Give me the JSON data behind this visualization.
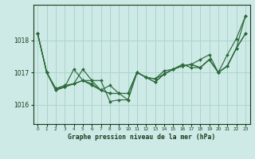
{
  "title": "Graphe pression niveau de la mer (hPa)",
  "background_color": "#ceeae6",
  "grid_color": "#aad4cc",
  "line_color": "#2d6b3c",
  "text_color": "#1a3a1a",
  "xlim": [
    -0.5,
    23.5
  ],
  "ylim": [
    1015.4,
    1019.1
  ],
  "yticks": [
    1016,
    1017,
    1018
  ],
  "xticks": [
    0,
    1,
    2,
    3,
    4,
    5,
    6,
    7,
    8,
    9,
    10,
    11,
    12,
    13,
    14,
    15,
    16,
    17,
    18,
    19,
    20,
    21,
    22,
    23
  ],
  "series": [
    [
      1018.2,
      1017.0,
      1016.5,
      1016.6,
      1016.65,
      1017.1,
      1016.75,
      1016.75,
      1016.1,
      1016.15,
      1016.15,
      1017.0,
      1016.85,
      1016.8,
      1017.05,
      1017.1,
      1017.2,
      1017.25,
      1017.4,
      1017.55,
      1017.0,
      1017.55,
      1018.05,
      1018.75
    ],
    [
      1018.2,
      1017.0,
      1016.5,
      1016.55,
      1016.65,
      1016.75,
      1016.65,
      1016.45,
      1016.35,
      1016.35,
      1016.35,
      1017.0,
      1016.85,
      1016.7,
      1016.95,
      1017.1,
      1017.2,
      1017.25,
      1017.15,
      1017.4,
      1017.0,
      1017.2,
      1017.75,
      1018.2
    ],
    [
      1018.2,
      1017.0,
      1016.45,
      1016.55,
      1017.1,
      1016.75,
      1016.6,
      1016.45,
      1016.6,
      1016.35,
      1016.15,
      1017.0,
      1016.85,
      1016.7,
      1016.95,
      1017.1,
      1017.2,
      1017.25,
      1017.15,
      1017.4,
      1017.0,
      1017.2,
      1017.75,
      1018.75
    ],
    [
      1018.2,
      1017.0,
      1016.45,
      1016.55,
      1016.65,
      1016.75,
      1016.75,
      1016.45,
      1016.35,
      1016.35,
      1016.35,
      1017.0,
      1016.85,
      1016.8,
      1016.95,
      1017.1,
      1017.25,
      1017.15,
      1017.15,
      1017.4,
      1017.0,
      1017.2,
      1017.75,
      1018.2
    ]
  ]
}
